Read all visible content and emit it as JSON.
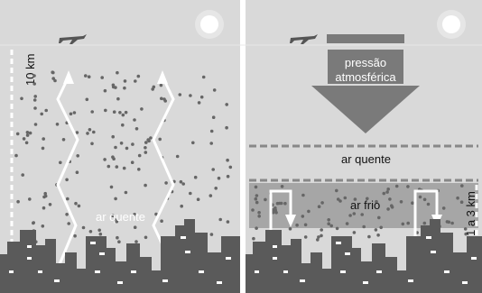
{
  "panels": {
    "left": {
      "height_label": "10 km",
      "air_label": "ar quente"
    },
    "right": {
      "arrow_label_line1": "pressão",
      "arrow_label_line2": "atmosférica",
      "warm_layer_label": "ar quente",
      "cold_layer_label": "ar frio",
      "height_label": "1 a 3 km"
    }
  },
  "colors": {
    "sky": "#d9d9d9",
    "buildings": "#5a5a5a",
    "particles": "#666666",
    "cold_layer": "#a6a6a6",
    "pressure_arrow": "#7a7a7a",
    "sun": "#ffffff",
    "arrows": "#ffffff"
  },
  "icons": [
    "sun-icon",
    "airplane-icon"
  ]
}
